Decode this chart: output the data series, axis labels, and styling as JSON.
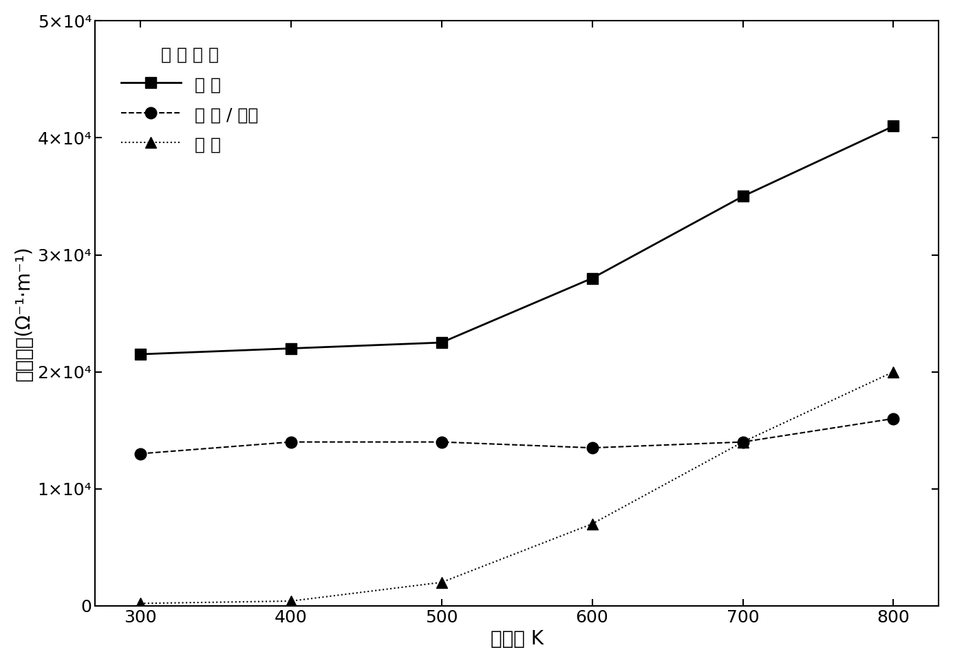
{
  "x": [
    300,
    400,
    500,
    600,
    700,
    800
  ],
  "micron_y": [
    21500,
    22000,
    22500,
    28000,
    35000,
    41000
  ],
  "nano_micron_y": [
    13000,
    14000,
    14000,
    13500,
    14000,
    16000
  ],
  "nano_y": [
    200,
    400,
    2000,
    7000,
    14000,
    20000
  ],
  "xlim": [
    270,
    830
  ],
  "ylim": [
    0,
    50000
  ],
  "yticks": [
    0,
    10000,
    20000,
    30000,
    40000,
    50000
  ],
  "ytick_labels": [
    "0",
    "1×10⁴",
    "2×10⁴",
    "3×10⁴",
    "4×10⁴",
    "5×10⁴"
  ],
  "xticks": [
    300,
    400,
    500,
    600,
    700,
    800
  ],
  "xlabel": "温度／ K",
  "ylabel": "电导率／(Ω⁻¹·m⁻¹)",
  "legend_title": "晶 粒 尺 寸",
  "label_micron": "微 米",
  "label_nano_micron": "纳 米 / 微米",
  "label_nano": "纳 米",
  "micron_color": "#000000",
  "nano_micron_color": "#000000",
  "nano_color": "#000000",
  "bg_color": "#ffffff",
  "fontsize_label": 20,
  "fontsize_tick": 18,
  "fontsize_legend": 18
}
